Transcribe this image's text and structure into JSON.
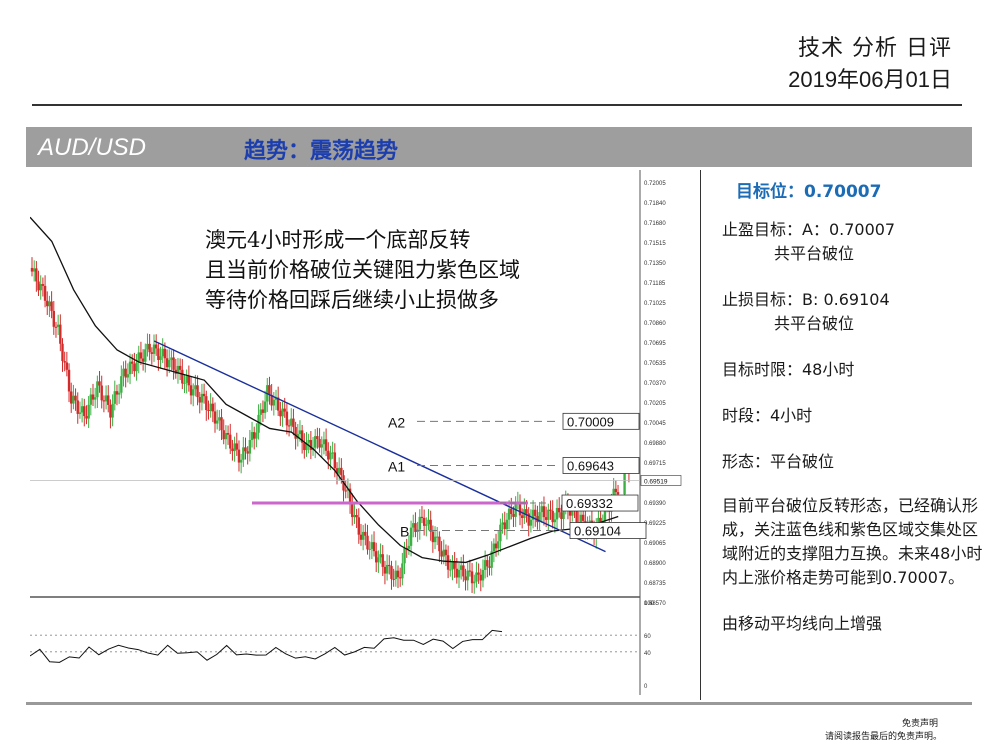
{
  "header": {
    "title": "技术 分析 日评",
    "date": "2019年06月01日"
  },
  "banner": {
    "pair": "AUD/USD",
    "trend": "趋势：震荡趋势"
  },
  "annotation_lines": [
    "澳元4小时形成一个底部反转",
    "且当前价格破位关键阻力紫色区域",
    "等待价格回踩后继续小止损做多"
  ],
  "panel": {
    "target": "目标位：0.70007",
    "tp_label": "止盈目标：A：0.70007",
    "tp_note": "共平台破位",
    "sl_label": "止损目标：B: 0.69104",
    "sl_note": "共平台破位",
    "horizon": "目标时限：48小时",
    "timeframe": "时段：4小时",
    "pattern": "形态：平台破位",
    "description": "目前平台破位反转形态，已经确认形成，关注蓝色线和紫色区域交集处区域附近的支撑阻力互换。未来48小时内上涨价格走势可能到0.70007。",
    "ma_note": "由移动平均线向上增强"
  },
  "disclaimer": {
    "line1": "免责声明",
    "line2": "请阅读报告最后的免责声明。"
  },
  "colors": {
    "bull": "#3cb043",
    "bear": "#d22b2b",
    "trendline": "#1a2f9c",
    "zone": "#cc66cc",
    "ma": "#111111",
    "target_text": "#1c6bb5"
  },
  "chart_data": {
    "type": "candlestick",
    "timeframe": "4小时",
    "ylim": [
      0.6857,
      0.7205
    ],
    "y_ticks": [
      "0.72005",
      "0.71840",
      "0.71680",
      "0.71515",
      "0.71350",
      "0.71185",
      "0.71025",
      "0.70860",
      "0.70695",
      "0.70535",
      "0.70370",
      "0.70205",
      "0.70045",
      "0.69880",
      "0.69715",
      "0.69555",
      "0.69390",
      "0.69225",
      "0.69065",
      "0.68900",
      "0.68735",
      "0.68570"
    ],
    "levels": [
      {
        "name": "A2",
        "value": 0.70009,
        "label": "0.70009"
      },
      {
        "name": "A1",
        "value": 0.69643,
        "label": "0.69643"
      },
      {
        "name": "zone",
        "value": 0.69332,
        "label": "0.69332"
      },
      {
        "name": "B",
        "value": 0.69104,
        "label": "0.69104"
      }
    ],
    "current_price": "0.69519",
    "close_points": [
      [
        0,
        0.7125
      ],
      [
        6,
        0.7105
      ],
      [
        12,
        0.7075
      ],
      [
        18,
        0.702
      ],
      [
        24,
        0.7005
      ],
      [
        30,
        0.703
      ],
      [
        36,
        0.701
      ],
      [
        42,
        0.704
      ],
      [
        48,
        0.705
      ],
      [
        54,
        0.7062
      ],
      [
        60,
        0.7055
      ],
      [
        66,
        0.7045
      ],
      [
        72,
        0.703
      ],
      [
        78,
        0.702
      ],
      [
        84,
        0.7005
      ],
      [
        90,
        0.6985
      ],
      [
        96,
        0.697
      ],
      [
        102,
        0.699
      ],
      [
        108,
        0.7025
      ],
      [
        114,
        0.701
      ],
      [
        120,
        0.6995
      ],
      [
        126,
        0.698
      ],
      [
        132,
        0.6985
      ],
      [
        138,
        0.697
      ],
      [
        144,
        0.6945
      ],
      [
        150,
        0.691
      ],
      [
        156,
        0.6895
      ],
      [
        162,
        0.688
      ],
      [
        168,
        0.687
      ],
      [
        174,
        0.691
      ],
      [
        180,
        0.692
      ],
      [
        186,
        0.69
      ],
      [
        192,
        0.688
      ],
      [
        198,
        0.6875
      ],
      [
        204,
        0.687
      ],
      [
        210,
        0.6885
      ],
      [
        216,
        0.6915
      ],
      [
        222,
        0.693
      ],
      [
        228,
        0.692
      ],
      [
        234,
        0.6925
      ],
      [
        240,
        0.6922
      ],
      [
        246,
        0.693
      ],
      [
        252,
        0.6918
      ],
      [
        258,
        0.691
      ],
      [
        264,
        0.6928
      ],
      [
        270,
        0.695
      ]
    ],
    "ma_points": [
      [
        0,
        0.717
      ],
      [
        10,
        0.715
      ],
      [
        20,
        0.711
      ],
      [
        30,
        0.708
      ],
      [
        40,
        0.706
      ],
      [
        50,
        0.705
      ],
      [
        60,
        0.7045
      ],
      [
        70,
        0.704
      ],
      [
        80,
        0.7035
      ],
      [
        90,
        0.7015
      ],
      [
        100,
        0.7005
      ],
      [
        110,
        0.6995
      ],
      [
        120,
        0.6992
      ],
      [
        130,
        0.6978
      ],
      [
        140,
        0.696
      ],
      [
        150,
        0.6935
      ],
      [
        160,
        0.6915
      ],
      [
        170,
        0.6898
      ],
      [
        180,
        0.6888
      ],
      [
        190,
        0.6885
      ],
      [
        200,
        0.6884
      ],
      [
        210,
        0.689
      ],
      [
        220,
        0.6897
      ],
      [
        230,
        0.6904
      ],
      [
        240,
        0.691
      ],
      [
        250,
        0.6912
      ],
      [
        260,
        0.6916
      ],
      [
        270,
        0.6922
      ]
    ],
    "trendline": [
      [
        35,
        0.7065
      ],
      [
        255,
        0.6912
      ]
    ],
    "rsi": {
      "ylim": [
        0,
        100
      ],
      "y_ticks": [
        "100",
        "60",
        "40",
        "0"
      ],
      "levels": [
        60,
        40
      ],
      "values": [
        35,
        40,
        32,
        25,
        33,
        36,
        42,
        38,
        45,
        44,
        48,
        42,
        36,
        40,
        45,
        38,
        42,
        36,
        32,
        38,
        44,
        40,
        36,
        34,
        40,
        42,
        38,
        35,
        30,
        34,
        38,
        42,
        40,
        38,
        44,
        48,
        52,
        58,
        56,
        50,
        52,
        55,
        50,
        48,
        50,
        54,
        58,
        62,
        66
      ]
    }
  }
}
